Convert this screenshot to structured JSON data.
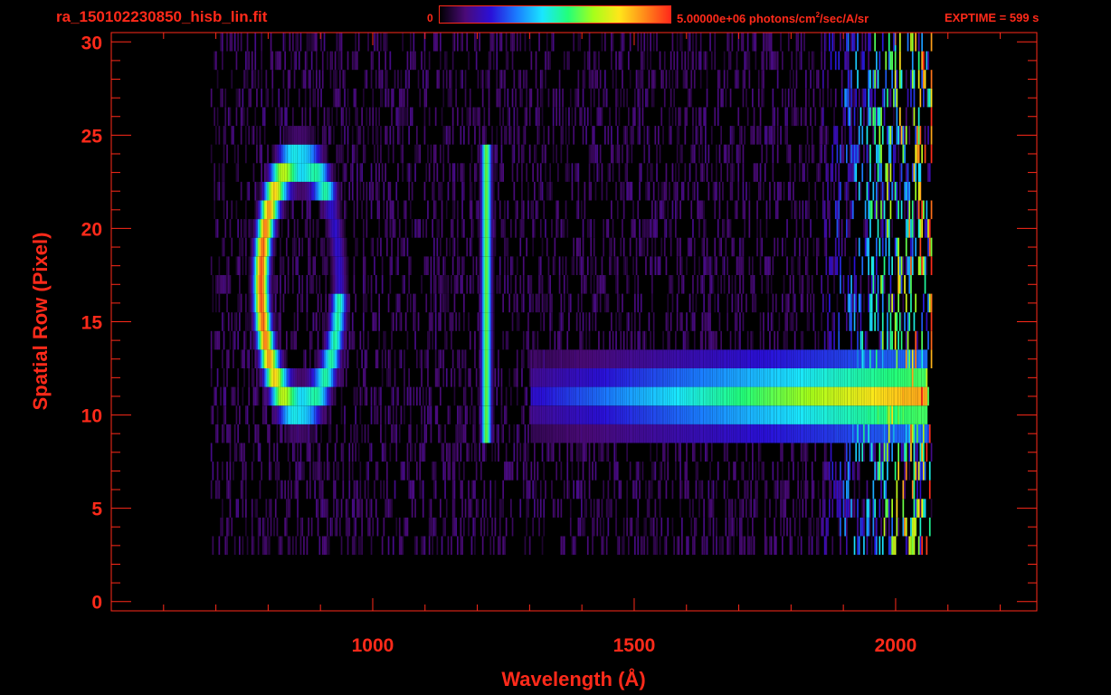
{
  "header": {
    "filename": "ra_150102230850_hisb_lin.fit",
    "colorbar_min": "0",
    "colorbar_max_prefix": "5.00000e+06 photons/cm",
    "colorbar_max_sup": "2",
    "colorbar_max_suffix": "/sec/A/sr",
    "exptime": "EXPTIME = 599 s"
  },
  "colors": {
    "axis": "#ff2a1a",
    "background": "#000000",
    "colormap": [
      "#000000",
      "#4a0a78",
      "#2a10d8",
      "#1a7cff",
      "#1ae6ff",
      "#22ff7a",
      "#a6ff1a",
      "#ffe61a",
      "#ff8a1a",
      "#ff2a1a"
    ]
  },
  "chart_data": {
    "type": "heatmap",
    "title": "ra_150102230850_hisb_lin.fit",
    "xlabel": "Wavelength (Å)",
    "ylabel": "Spatial Row (Pixel)",
    "xlim": [
      500,
      2270
    ],
    "ylim": [
      -0.5,
      30.5
    ],
    "x_ticks": [
      1000,
      1500,
      2000
    ],
    "y_ticks": [
      0,
      5,
      10,
      15,
      20,
      25,
      30
    ],
    "x_minor_step": 100,
    "y_minor_step": 1,
    "colorbar": {
      "min": 0,
      "max": 5000000,
      "unit": "photons/cm2/sec/A/sr",
      "colormap": "rainbow"
    },
    "data_x_range": [
      690,
      2070
    ],
    "data_rows": [
      3,
      30
    ],
    "features": [
      {
        "name": "",
        "x_center": 860,
        "row_center": 17,
        "row_halfspan": 6.5,
        "x_halfspan": 75,
        "peak": 0.95,
        "kind": "ring"
      },
      {
        "name": "",
        "x_center": 1216,
        "rows": [
          9,
          24
        ],
        "peak": 0.62,
        "kind": "line"
      },
      {
        "name": "",
        "x_start": 1300,
        "x_end": 2060,
        "rows": [
          9,
          13
        ],
        "peak_at": 2040,
        "peak": 0.92,
        "kind": "band"
      }
    ]
  }
}
